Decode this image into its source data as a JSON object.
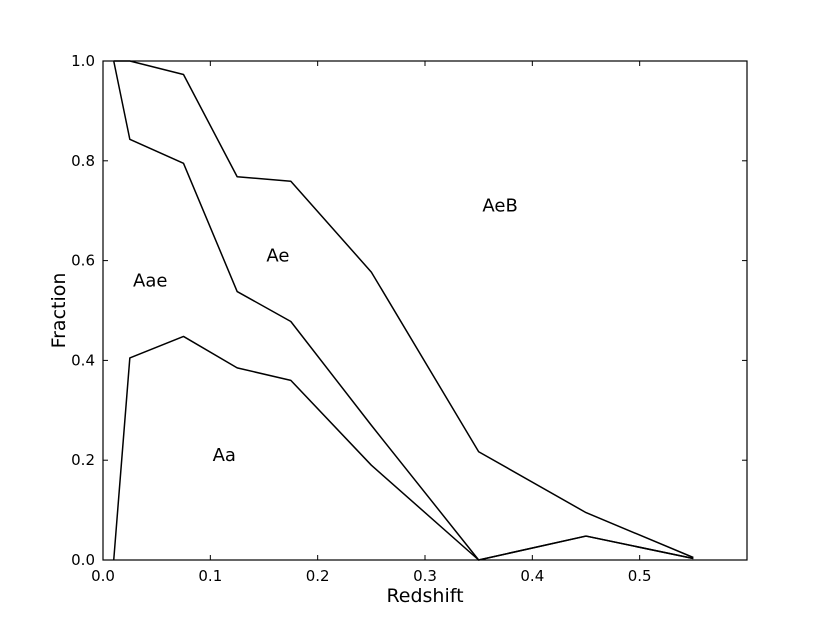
{
  "chart_data": {
    "type": "line",
    "title": "",
    "xlabel": "Redshift",
    "ylabel": "Fraction",
    "xlim": [
      0.0,
      0.6
    ],
    "ylim": [
      0.0,
      1.0
    ],
    "x_ticks": [
      {
        "value": 0.0,
        "label": "0.0"
      },
      {
        "value": 0.1,
        "label": "0.1"
      },
      {
        "value": 0.2,
        "label": "0.2"
      },
      {
        "value": 0.3,
        "label": "0.3"
      },
      {
        "value": 0.4,
        "label": "0.4"
      },
      {
        "value": 0.5,
        "label": "0.5"
      }
    ],
    "y_ticks": [
      {
        "value": 0.0,
        "label": "0.0"
      },
      {
        "value": 0.2,
        "label": "0.2"
      },
      {
        "value": 0.4,
        "label": "0.4"
      },
      {
        "value": 0.6,
        "label": "0.6"
      },
      {
        "value": 0.8,
        "label": "0.8"
      },
      {
        "value": 1.0,
        "label": "1.0"
      }
    ],
    "grid": false,
    "line_color": "#000000",
    "series": [
      {
        "x": [
          0.01,
          0.025,
          0.075,
          0.125,
          0.175,
          0.25,
          0.35,
          0.45,
          0.55
        ],
        "y": [
          0.0,
          0.405,
          0.448,
          0.385,
          0.36,
          0.19,
          0.0,
          0.048,
          0.003
        ]
      },
      {
        "x": [
          0.01,
          0.025,
          0.075,
          0.125,
          0.175,
          0.25,
          0.35,
          0.45,
          0.55
        ],
        "y": [
          1.0,
          0.843,
          0.795,
          0.538,
          0.478,
          0.27,
          0.0,
          0.048,
          0.003
        ]
      },
      {
        "x": [
          0.01,
          0.025,
          0.075,
          0.125,
          0.175,
          0.25,
          0.35,
          0.45,
          0.55
        ],
        "y": [
          1.0,
          1.0,
          0.973,
          0.768,
          0.759,
          0.577,
          0.217,
          0.095,
          0.005
        ]
      }
    ],
    "annotations": [
      {
        "text": "Aa",
        "x": 0.113,
        "y": 0.21
      },
      {
        "text": "Aae",
        "x": 0.044,
        "y": 0.56
      },
      {
        "text": "Ae",
        "x": 0.163,
        "y": 0.61
      },
      {
        "text": "AeB",
        "x": 0.37,
        "y": 0.71
      }
    ]
  }
}
